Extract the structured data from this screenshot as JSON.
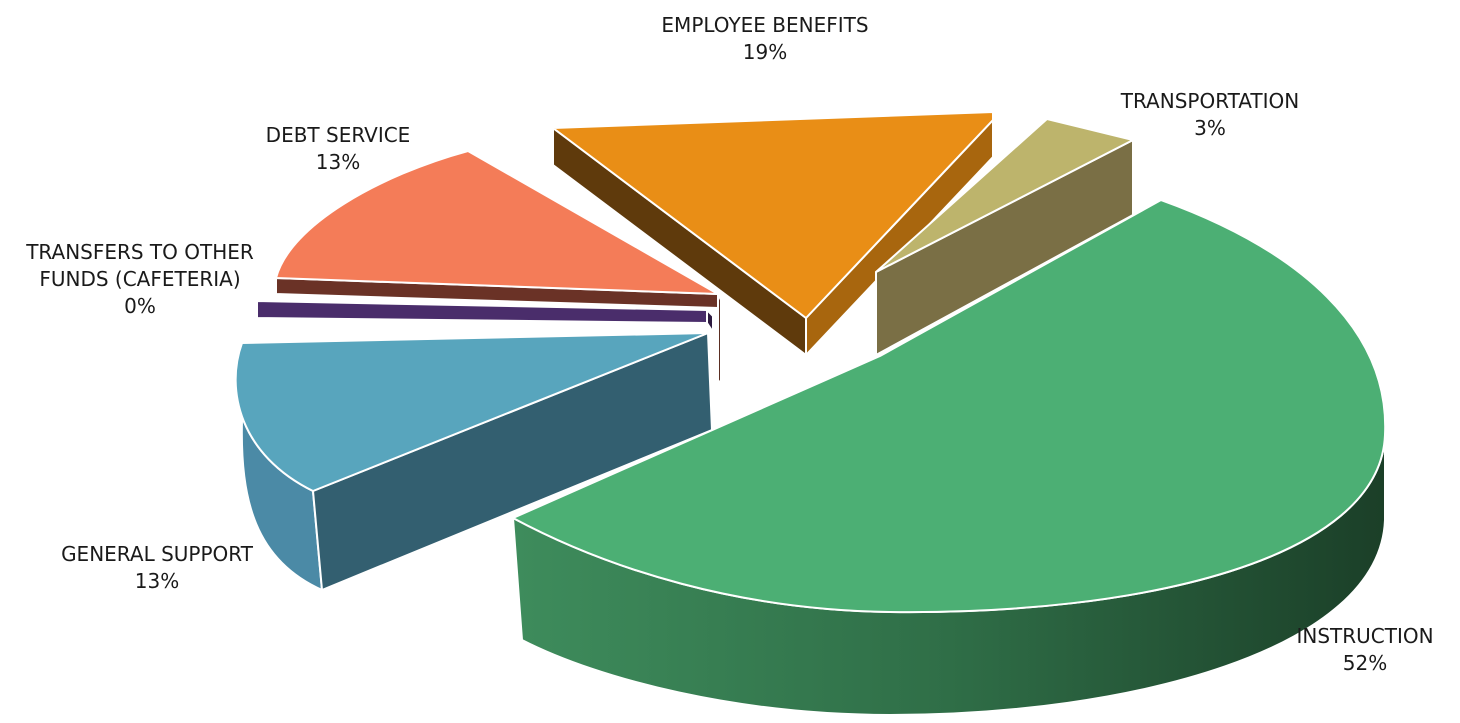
{
  "chart_data": {
    "type": "pie",
    "style": "3d-exploded",
    "title": "",
    "slices": [
      {
        "name_lines": [
          "EMPLOYEE BENEFITS"
        ],
        "percent_label": "19%",
        "value": 19,
        "color": "#E98E16"
      },
      {
        "name_lines": [
          "TRANSPORTATION"
        ],
        "percent_label": "3%",
        "value": 3,
        "color": "#BDB46C"
      },
      {
        "name_lines": [
          "INSTRUCTION"
        ],
        "percent_label": "52%",
        "value": 52,
        "color": "#4CAF74"
      },
      {
        "name_lines": [
          "GENERAL SUPPORT"
        ],
        "percent_label": "13%",
        "value": 13,
        "color": "#58A5BD"
      },
      {
        "name_lines": [
          "TRANSFERS TO OTHER",
          "FUNDS (CAFETERIA)"
        ],
        "percent_label": "0%",
        "value": 0,
        "color": "#4A2D6B"
      },
      {
        "name_lines": [
          "DEBT SERVICE"
        ],
        "percent_label": "13%",
        "value": 13,
        "color": "#F47C58"
      }
    ]
  }
}
